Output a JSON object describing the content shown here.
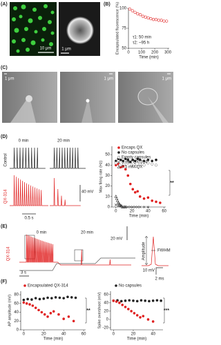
{
  "panel_labels": [
    "(A)",
    "(B)",
    "(C)",
    "(D)",
    "(E)",
    "(F)"
  ],
  "scale_labels": {
    "A": [
      "10 μm",
      "1 μm"
    ],
    "C": [
      "1 μm",
      "1 μm",
      "1 μm"
    ]
  },
  "traces": {
    "D": {
      "times": [
        "0 min",
        "20 min"
      ],
      "rows": [
        "Control",
        "QX-314"
      ],
      "scale_v": "40 mV",
      "scale_t": "0.5 s"
    },
    "E": {
      "label": "QX-314",
      "times": [
        "0 min",
        "20 min"
      ],
      "scale_v": "20 mV",
      "scale_t": "3 s",
      "amplitude": "Amplitude",
      "fwhm": "FWHM",
      "inset_v": "10 mV",
      "inset_t": "2 ms"
    }
  },
  "chart_data": [
    {
      "type": "scatter",
      "xlabel": "Time (min)",
      "ylabel": "Encapsulated fluorescence (%)",
      "xlim": [
        0,
        310
      ],
      "ylim": [
        50,
        100
      ],
      "xticks": [
        0,
        100,
        200,
        300
      ],
      "yticks": [
        50,
        75,
        100
      ],
      "annotations": [
        "τ1: 50 min",
        "τ2: ~95 h"
      ],
      "series": [
        {
          "color": "#e02020",
          "marker": "open-circle",
          "line": "dashed",
          "x": [
            10,
            30,
            50,
            70,
            90,
            110,
            130,
            150,
            170,
            190,
            210,
            230,
            250,
            270,
            290
          ],
          "values": [
            99,
            97,
            95,
            93,
            92,
            90,
            89,
            88,
            87,
            86,
            86,
            85,
            85,
            84,
            84
          ]
        }
      ]
    },
    {
      "type": "scatter",
      "xlabel": "Time (min)",
      "ylabel": "Max firing rate (Hz)",
      "xlim": [
        -5,
        62
      ],
      "ylim": [
        0,
        58
      ],
      "xticks": [
        0,
        20,
        40,
        60
      ],
      "yticks": [
        0,
        10,
        20,
        30,
        40,
        50
      ],
      "legend": "upper right",
      "annotations": [
        "**"
      ],
      "series": [
        {
          "name": "Encaps QX",
          "color": "#e02020",
          "marker": "circle",
          "x": [
            0,
            3,
            6,
            9,
            12,
            15,
            18,
            21,
            24,
            27,
            30,
            35,
            40,
            45,
            50,
            55
          ],
          "values": [
            40,
            41,
            38,
            39,
            36,
            30,
            22,
            17,
            14,
            15,
            10,
            8,
            9,
            6,
            5,
            4
          ]
        },
        {
          "name": "No capsules",
          "color": "#222222",
          "marker": "circle",
          "x": [
            0,
            3,
            6,
            9,
            12,
            15,
            18,
            21,
            24,
            27,
            30,
            35,
            40,
            45,
            50
          ],
          "values": [
            44,
            46,
            45,
            44,
            46,
            45,
            43,
            45,
            44,
            46,
            45,
            44,
            45,
            44,
            45
          ]
        },
        {
          "name": "Empty capsules",
          "color": "#888888",
          "marker": "open-circle",
          "x": [
            0,
            5,
            10,
            15,
            20,
            25,
            30,
            35,
            40,
            45,
            50
          ],
          "values": [
            42,
            40,
            41,
            42,
            40,
            39,
            41,
            40,
            42,
            41,
            40
          ]
        },
        {
          "name": "5 mM QX-314",
          "color": "#333333",
          "marker": "x",
          "x": [
            0,
            3,
            6,
            9,
            12,
            15,
            18,
            21,
            24,
            27,
            30,
            35,
            40
          ],
          "values": [
            2,
            1,
            1,
            0,
            0,
            0,
            0,
            0,
            0,
            0,
            0,
            0,
            0
          ]
        },
        {
          "name": "0.5 mM QX",
          "color": "#333333",
          "marker": "triangle",
          "x": [
            0,
            1,
            2,
            3,
            4,
            5,
            6,
            7,
            8,
            10,
            12
          ],
          "values": [
            10,
            8,
            6,
            4,
            3,
            2,
            1,
            1,
            0,
            0,
            0
          ]
        }
      ]
    },
    {
      "type": "scatter",
      "xlabel": "Time (min)",
      "ylabel": "AP amplitude (mV)",
      "xlim": [
        -3,
        62
      ],
      "ylim": [
        0,
        88
      ],
      "xticks": [
        0,
        20,
        40,
        60
      ],
      "yticks": [
        0,
        20,
        40,
        60,
        80
      ],
      "legend": "top",
      "annotations": [
        "**"
      ],
      "series": [
        {
          "name": "Encapsulated QX-314",
          "color": "#e02020",
          "marker": "circle",
          "x": [
            0,
            3,
            6,
            9,
            12,
            15,
            18,
            21,
            24,
            27,
            30,
            35,
            40,
            45,
            50
          ],
          "values": [
            62,
            60,
            58,
            55,
            50,
            45,
            40,
            35,
            30,
            38,
            42,
            35,
            25,
            30,
            20
          ]
        },
        {
          "color": "#222222",
          "marker": "circle",
          "x": [
            0,
            4,
            8,
            12,
            16,
            20,
            24,
            28,
            32,
            36,
            40,
            44,
            48,
            52
          ],
          "values": [
            68,
            70,
            69,
            72,
            70,
            71,
            73,
            72,
            74,
            73,
            72,
            75,
            74,
            73
          ]
        }
      ]
    },
    {
      "type": "scatter",
      "xlabel": "Time (min)",
      "ylabel": "Spike overshoot (mV)",
      "xlim": [
        -3,
        50
      ],
      "ylim": [
        -25,
        68
      ],
      "xticks": [
        0,
        20,
        40
      ],
      "yticks": [
        -20,
        0,
        20,
        40,
        60
      ],
      "legend": "top",
      "annotations": [
        "***"
      ],
      "series": [
        {
          "name": "No capsules",
          "color": "#222222",
          "marker": "circle",
          "x": [
            0,
            4,
            8,
            12,
            16,
            20,
            24,
            28,
            32,
            36,
            40,
            44,
            48
          ],
          "values": [
            45,
            46,
            44,
            45,
            46,
            45,
            44,
            46,
            45,
            44,
            45,
            46,
            45
          ]
        },
        {
          "color": "#e02020",
          "marker": "circle",
          "x": [
            0,
            3,
            6,
            9,
            12,
            15,
            18,
            21,
            24,
            27,
            30,
            35,
            40
          ],
          "values": [
            45,
            43,
            40,
            35,
            30,
            25,
            20,
            15,
            10,
            5,
            8,
            0,
            -5
          ]
        }
      ]
    }
  ]
}
